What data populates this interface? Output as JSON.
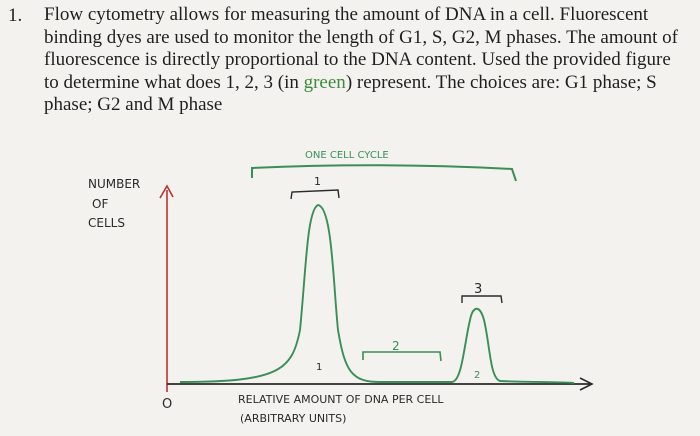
{
  "question": {
    "number": "1.",
    "text_before": "Flow cytometry allows for measuring the amount of DNA in a cell. Fluorescent binding dyes are used to monitor the length of G1, S, G2, M phases. The amount of fluorescence is directly proportional to the DNA content. Used the provided figure to determine what does 1, 2, 3 (in ",
    "green_word": "green",
    "text_after": ") represent. The choices are: G1 phase;  S phase;  G2 and M phase"
  },
  "figure": {
    "top_label": "ONE CELL CYCLE",
    "y_label_line1": "NUMBER",
    "y_label_line2": "OF",
    "y_label_line3": "CELLS",
    "origin_label": "O",
    "x_label_line1": "RELATIVE AMOUNT OF DNA PER CELL",
    "x_label_line2": "(ARBITRARY UNITS)",
    "label_1": "1",
    "label_2": "2",
    "label_3": "3",
    "label_2_small": "2"
  }
}
